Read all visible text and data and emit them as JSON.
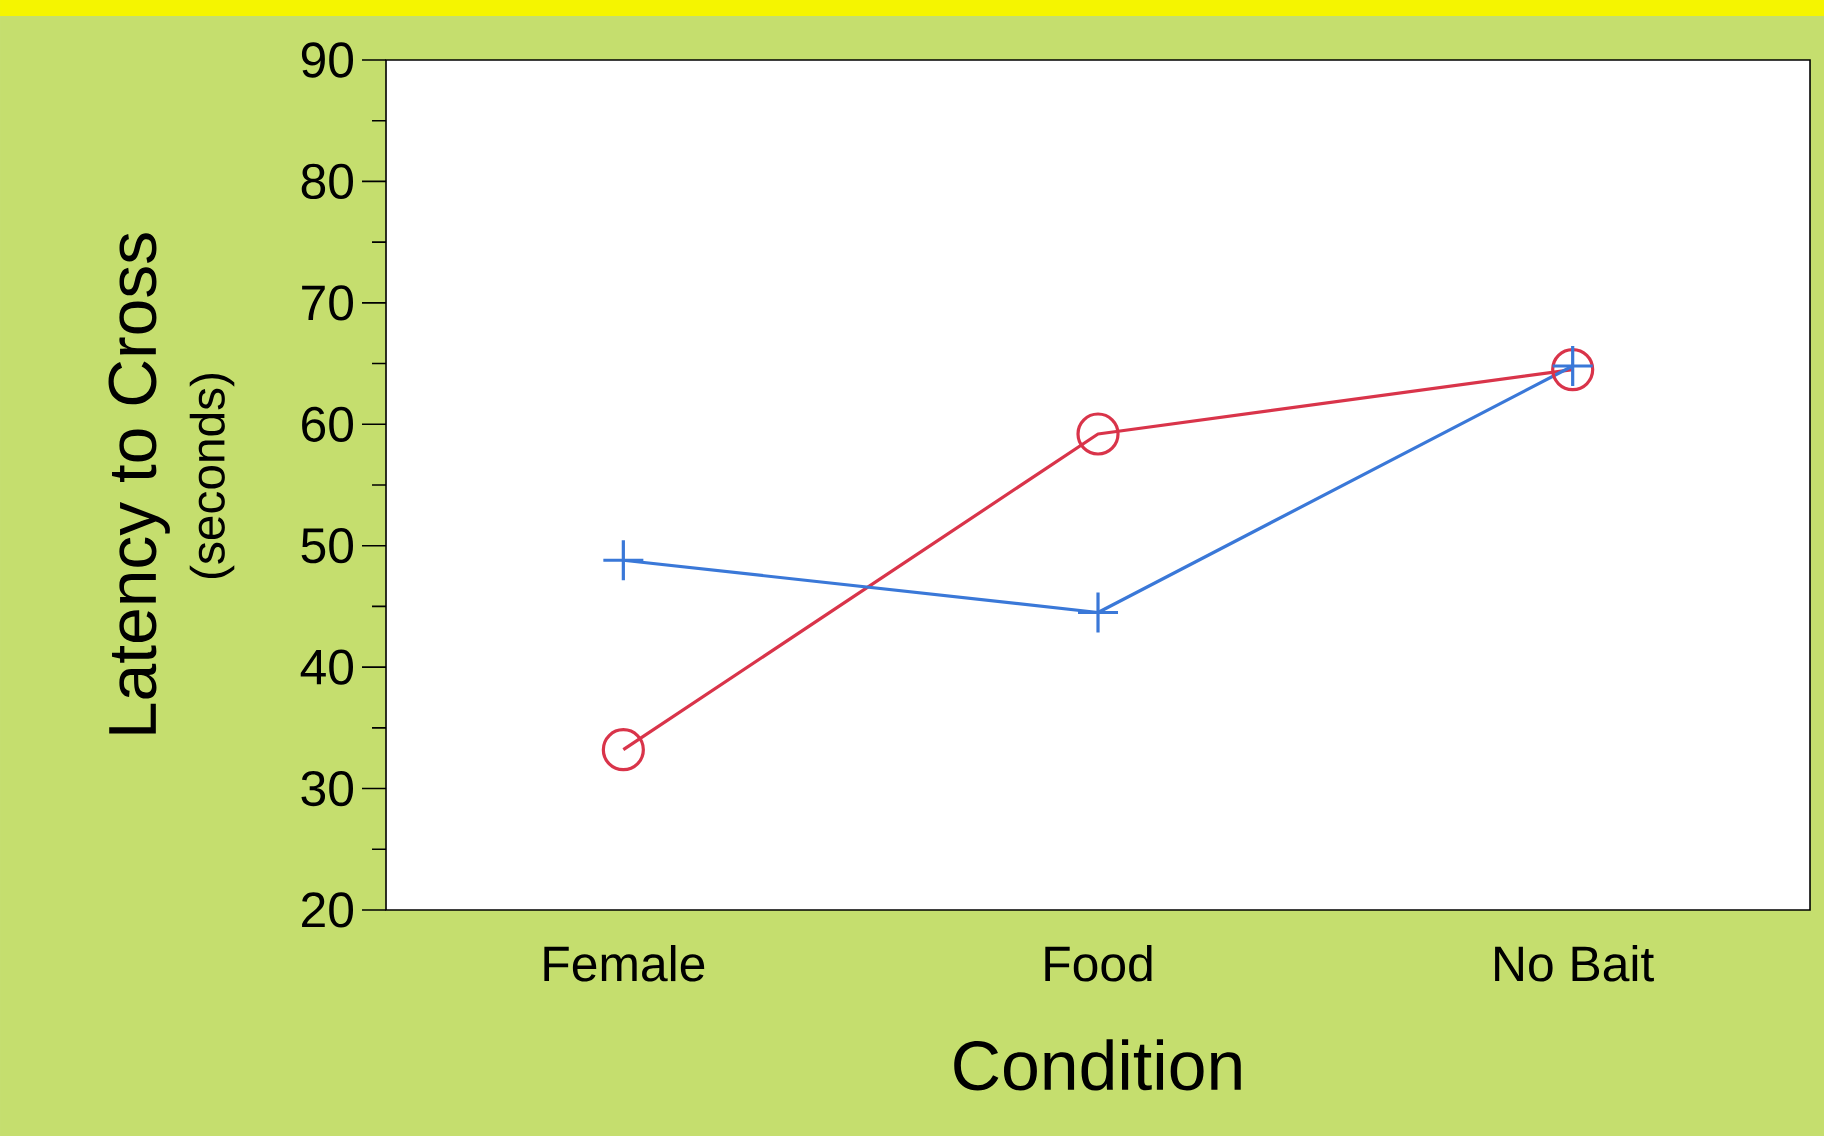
{
  "chart_data": {
    "type": "line",
    "xlabel": "Condition",
    "ylabel": "Latency to Cross",
    "annotations": [
      "(seconds)"
    ],
    "categories": [
      "Female",
      "Food",
      "No Bait"
    ],
    "series": [
      {
        "color": "#d9344a",
        "marker": "circle",
        "values": [
          33.2,
          59.2,
          64.5
        ]
      },
      {
        "color": "#3a78d8",
        "marker": "cross",
        "values": [
          48.8,
          44.5,
          64.8
        ]
      }
    ],
    "ylim": [
      20,
      90
    ],
    "yticks": [
      20,
      30,
      40,
      50,
      60,
      70,
      80,
      90
    ],
    "grid": false,
    "line_style": "solid"
  }
}
